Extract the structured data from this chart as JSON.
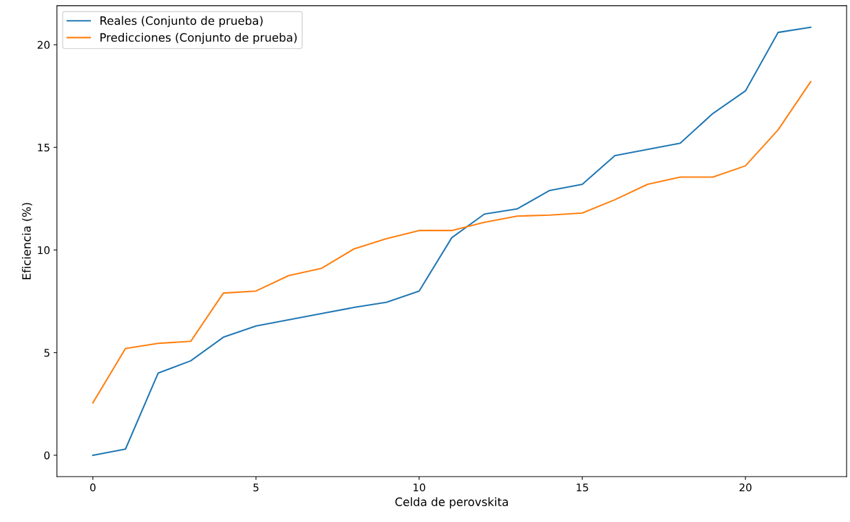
{
  "chart_data": {
    "type": "line",
    "xlabel": "Celda de perovskita",
    "ylabel": "Eficiencia (%)",
    "x": [
      0,
      1,
      2,
      3,
      4,
      5,
      6,
      7,
      8,
      9,
      10,
      11,
      12,
      13,
      14,
      15,
      16,
      17,
      18,
      19,
      20,
      21,
      22
    ],
    "series": [
      {
        "name": "Reales (Conjunto de prueba)",
        "color": "#1f77b4",
        "values": [
          0,
          0.3,
          4.0,
          4.6,
          5.75,
          6.3,
          6.6,
          6.9,
          7.2,
          7.45,
          8.0,
          10.6,
          11.75,
          12.0,
          12.9,
          13.2,
          14.6,
          14.9,
          15.2,
          16.65,
          17.75,
          20.6,
          20.85
        ]
      },
      {
        "name": "Predicciones (Conjunto de prueba)",
        "color": "#ff7f0e",
        "values": [
          2.55,
          5.2,
          5.45,
          5.55,
          7.9,
          8.0,
          8.75,
          9.1,
          10.05,
          10.55,
          10.95,
          10.95,
          11.35,
          11.65,
          11.7,
          11.8,
          12.45,
          13.2,
          13.55,
          13.55,
          14.1,
          15.85,
          18.2
        ]
      }
    ],
    "xlim": [
      -1.1,
      23.1
    ],
    "ylim": [
      -1.04,
      21.9
    ],
    "xticks": [
      0,
      5,
      10,
      15,
      20
    ],
    "yticks": [
      0,
      5,
      10,
      15,
      20
    ],
    "grid": false,
    "legend": "top left",
    "line_style": "solid",
    "marker": "none"
  }
}
